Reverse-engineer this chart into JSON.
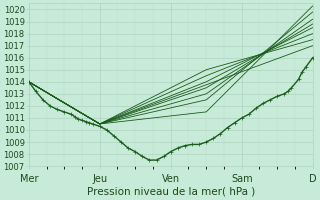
{
  "xlabel": "Pression niveau de la mer( hPa )",
  "bg_color": "#c8ead8",
  "grid_major_color": "#b0d4c0",
  "grid_minor_color": "#c0deca",
  "line_color": "#1a5c1a",
  "ymin": 1007,
  "ymax": 1020.5,
  "yticks": [
    1007,
    1008,
    1009,
    1010,
    1011,
    1012,
    1013,
    1014,
    1015,
    1016,
    1017,
    1018,
    1019,
    1020
  ],
  "xtick_labels": [
    "Mer",
    "Jeu",
    "Ven",
    "Sam",
    "D"
  ],
  "xtick_positions": [
    0,
    1,
    2,
    3,
    4
  ],
  "xmax": 4.0,
  "detail_line": [
    [
      0.0,
      1014.0
    ],
    [
      0.1,
      1013.2
    ],
    [
      0.2,
      1012.5
    ],
    [
      0.3,
      1012.0
    ],
    [
      0.4,
      1011.7
    ],
    [
      0.5,
      1011.5
    ],
    [
      0.6,
      1011.3
    ],
    [
      0.65,
      1011.1
    ],
    [
      0.7,
      1010.9
    ],
    [
      0.75,
      1010.8
    ],
    [
      0.8,
      1010.7
    ],
    [
      0.85,
      1010.6
    ],
    [
      0.9,
      1010.5
    ],
    [
      1.0,
      1010.3
    ],
    [
      1.1,
      1010.0
    ],
    [
      1.2,
      1009.5
    ],
    [
      1.3,
      1009.0
    ],
    [
      1.4,
      1008.5
    ],
    [
      1.5,
      1008.2
    ],
    [
      1.6,
      1007.8
    ],
    [
      1.7,
      1007.5
    ],
    [
      1.8,
      1007.5
    ],
    [
      1.9,
      1007.8
    ],
    [
      2.0,
      1008.2
    ],
    [
      2.1,
      1008.5
    ],
    [
      2.2,
      1008.7
    ],
    [
      2.3,
      1008.8
    ],
    [
      2.4,
      1008.8
    ],
    [
      2.5,
      1009.0
    ],
    [
      2.6,
      1009.3
    ],
    [
      2.7,
      1009.7
    ],
    [
      2.8,
      1010.2
    ],
    [
      2.9,
      1010.6
    ],
    [
      3.0,
      1011.0
    ],
    [
      3.1,
      1011.3
    ],
    [
      3.2,
      1011.8
    ],
    [
      3.3,
      1012.2
    ],
    [
      3.4,
      1012.5
    ],
    [
      3.5,
      1012.8
    ],
    [
      3.6,
      1013.0
    ],
    [
      3.65,
      1013.2
    ],
    [
      3.7,
      1013.5
    ],
    [
      3.8,
      1014.2
    ],
    [
      3.85,
      1014.8
    ],
    [
      3.9,
      1015.2
    ],
    [
      4.0,
      1016.0
    ]
  ],
  "ensemble_lines": [
    [
      [
        0.0,
        1014.0
      ],
      [
        1.0,
        1010.5
      ],
      [
        2.5,
        1011.5
      ],
      [
        4.0,
        1020.3
      ]
    ],
    [
      [
        0.0,
        1014.0
      ],
      [
        1.0,
        1010.5
      ],
      [
        2.5,
        1012.5
      ],
      [
        4.0,
        1019.8
      ]
    ],
    [
      [
        0.0,
        1014.0
      ],
      [
        1.0,
        1010.5
      ],
      [
        2.5,
        1013.0
      ],
      [
        4.0,
        1019.2
      ]
    ],
    [
      [
        0.0,
        1014.0
      ],
      [
        1.0,
        1010.5
      ],
      [
        2.5,
        1013.5
      ],
      [
        4.0,
        1018.8
      ]
    ],
    [
      [
        0.0,
        1014.0
      ],
      [
        1.0,
        1010.5
      ],
      [
        2.5,
        1014.0
      ],
      [
        4.0,
        1018.5
      ]
    ],
    [
      [
        0.0,
        1014.0
      ],
      [
        1.0,
        1010.5
      ],
      [
        2.5,
        1014.5
      ],
      [
        4.0,
        1018.0
      ]
    ],
    [
      [
        0.0,
        1014.0
      ],
      [
        1.0,
        1010.5
      ],
      [
        2.5,
        1015.0
      ],
      [
        4.0,
        1017.5
      ]
    ],
    [
      [
        0.0,
        1014.0
      ],
      [
        1.0,
        1010.5
      ],
      [
        4.0,
        1017.0
      ]
    ]
  ]
}
